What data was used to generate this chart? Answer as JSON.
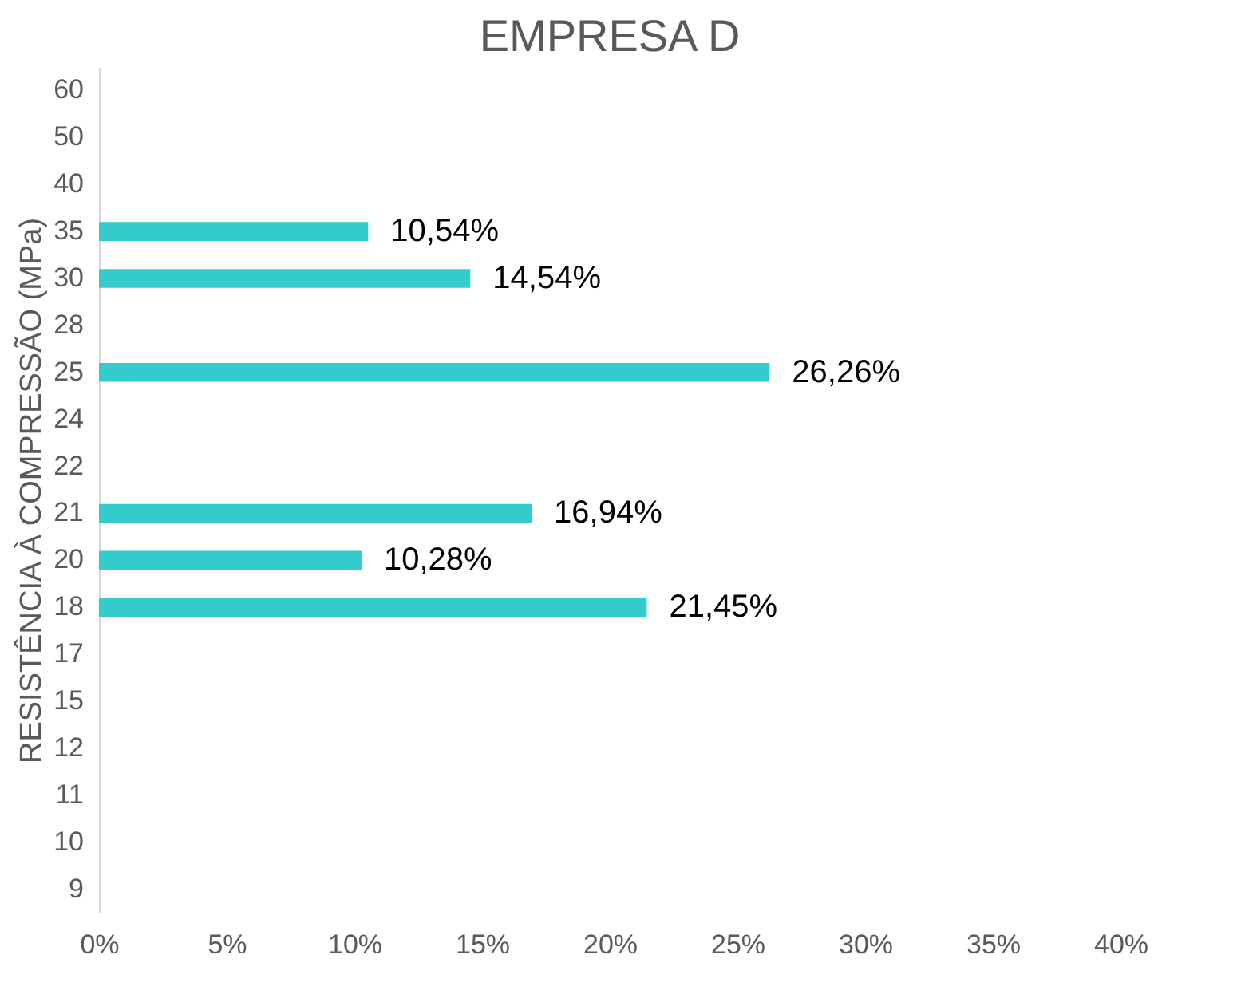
{
  "chart_data": {
    "type": "bar",
    "orientation": "horizontal",
    "title": "EMPRESA D",
    "ylabel": "RESISTÊNCIA À COMPRESSÃO (MPa)",
    "categories": [
      "60",
      "50",
      "40",
      "35",
      "30",
      "28",
      "25",
      "24",
      "22",
      "21",
      "20",
      "18",
      "17",
      "15",
      "12",
      "11",
      "10",
      "9"
    ],
    "values": [
      null,
      null,
      null,
      10.54,
      14.54,
      null,
      26.26,
      null,
      null,
      16.94,
      10.28,
      21.45,
      null,
      null,
      null,
      null,
      null,
      null
    ],
    "value_labels": [
      null,
      null,
      null,
      "10,54%",
      "14,54%",
      null,
      "26,26%",
      null,
      null,
      "16,94%",
      "10,28%",
      "21,45%",
      null,
      null,
      null,
      null,
      null,
      null
    ],
    "color": "#33cccc",
    "xlim": [
      0,
      40
    ],
    "xticks": [
      {
        "value": 0,
        "label": "0%"
      },
      {
        "value": 5,
        "label": "5%"
      },
      {
        "value": 10,
        "label": "10%"
      },
      {
        "value": 15,
        "label": "15%"
      },
      {
        "value": 20,
        "label": "20%"
      },
      {
        "value": 25,
        "label": "25%"
      },
      {
        "value": 30,
        "label": "30%"
      },
      {
        "value": 35,
        "label": "35%"
      },
      {
        "value": 40,
        "label": "40%"
      }
    ],
    "grid": false
  }
}
